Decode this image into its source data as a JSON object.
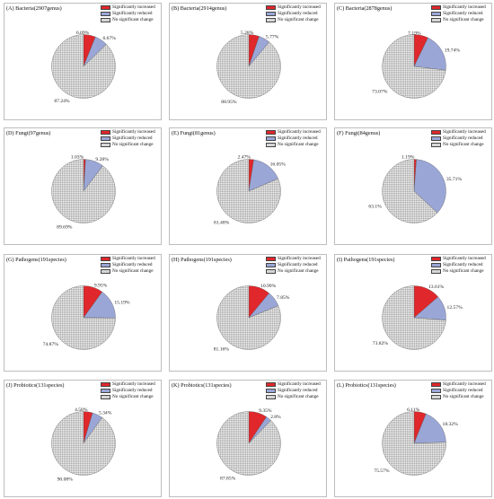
{
  "colors": {
    "increased": "#e0272b",
    "reduced": "#9aa6d6",
    "nochange": "#c6c6c6"
  },
  "legend_labels": [
    "Significantly increased",
    "Significantly reduced",
    "No significant change"
  ],
  "chart_data": [
    {
      "type": "pie",
      "panel": "(A)",
      "title": "Bacteria(2907genus)",
      "categories": [
        "Significantly increased",
        "Significantly reduced",
        "No significant change"
      ],
      "values": [
        6.09,
        6.67,
        87.24
      ],
      "labels": [
        "6.09%",
        "6.67%",
        "87.24%"
      ]
    },
    {
      "type": "pie",
      "panel": "(B)",
      "title": "Bacteria(2914genus)",
      "categories": [
        "Significantly increased",
        "Significantly reduced",
        "No significant change"
      ],
      "values": [
        5.28,
        5.77,
        88.95
      ],
      "labels": [
        "5.28%",
        "5.77%",
        "88.95%"
      ]
    },
    {
      "type": "pie",
      "panel": "(C)",
      "title": "Bacteria(2878genus)",
      "categories": [
        "Significantly increased",
        "Significantly reduced",
        "No significant change"
      ],
      "values": [
        7.19,
        19.74,
        73.07
      ],
      "labels": [
        "7.19%",
        "19.74%",
        "73.07%"
      ]
    },
    {
      "type": "pie",
      "panel": "(D)",
      "title": "Fungi(97genus)",
      "categories": [
        "Significantly increased",
        "Significantly reduced",
        "No significant change"
      ],
      "values": [
        1.03,
        9.28,
        89.69
      ],
      "labels": [
        "1.03%",
        "9.28%",
        "89.69%"
      ]
    },
    {
      "type": "pie",
      "panel": "(E)",
      "title": "Fungi(81genus)",
      "categories": [
        "Significantly increased",
        "Significantly reduced",
        "No significant change"
      ],
      "values": [
        2.47,
        16.05,
        81.48
      ],
      "labels": [
        "2.47%",
        "16.05%",
        "81.48%"
      ]
    },
    {
      "type": "pie",
      "panel": "(F)",
      "title": "Fungi(84genus)",
      "categories": [
        "Significantly increased",
        "Significantly reduced",
        "No significant change"
      ],
      "values": [
        1.19,
        35.71,
        63.1
      ],
      "labels": [
        "1.19%",
        "35.71%",
        "63.1%"
      ]
    },
    {
      "type": "pie",
      "panel": "(G)",
      "title": "Pathogens(191species)",
      "categories": [
        "Significantly increased",
        "Significantly reduced",
        "No significant change"
      ],
      "values": [
        9.95,
        15.19,
        74.87
      ],
      "labels": [
        "9.95%",
        "15.19%",
        "74.87%"
      ]
    },
    {
      "type": "pie",
      "panel": "(H)",
      "title": "Pathogens(191species)",
      "categories": [
        "Significantly increased",
        "Significantly reduced",
        "No significant change"
      ],
      "values": [
        10.99,
        7.85,
        81.16
      ],
      "labels": [
        "10.99%",
        "7.85%",
        "81.16%"
      ]
    },
    {
      "type": "pie",
      "panel": "(I)",
      "title": "Pathogens(191species)",
      "categories": [
        "Significantly increased",
        "Significantly reduced",
        "No significant change"
      ],
      "values": [
        13.61,
        12.57,
        73.82
      ],
      "labels": [
        "13.61%",
        "12.57%",
        "73.82%"
      ]
    },
    {
      "type": "pie",
      "panel": "(J)",
      "title": "Probiotics(131species)",
      "categories": [
        "Significantly increased",
        "Significantly reduced",
        "No significant change"
      ],
      "values": [
        4.58,
        5.34,
        90.08
      ],
      "labels": [
        "4.58%",
        "5.34%",
        "90.08%"
      ]
    },
    {
      "type": "pie",
      "panel": "(K)",
      "title": "Probiotics(131species)",
      "categories": [
        "Significantly increased",
        "Significantly reduced",
        "No significant change"
      ],
      "values": [
        9.35,
        2.8,
        87.85
      ],
      "labels": [
        "9.35%",
        "2.8%",
        "87.85%"
      ]
    },
    {
      "type": "pie",
      "panel": "(L)",
      "title": "Probiotics(131species)",
      "categories": [
        "Significantly increased",
        "Significantly reduced",
        "No significant change"
      ],
      "values": [
        6.11,
        18.32,
        75.57
      ],
      "labels": [
        "6.11%",
        "18.32%",
        "75.57%"
      ]
    }
  ]
}
